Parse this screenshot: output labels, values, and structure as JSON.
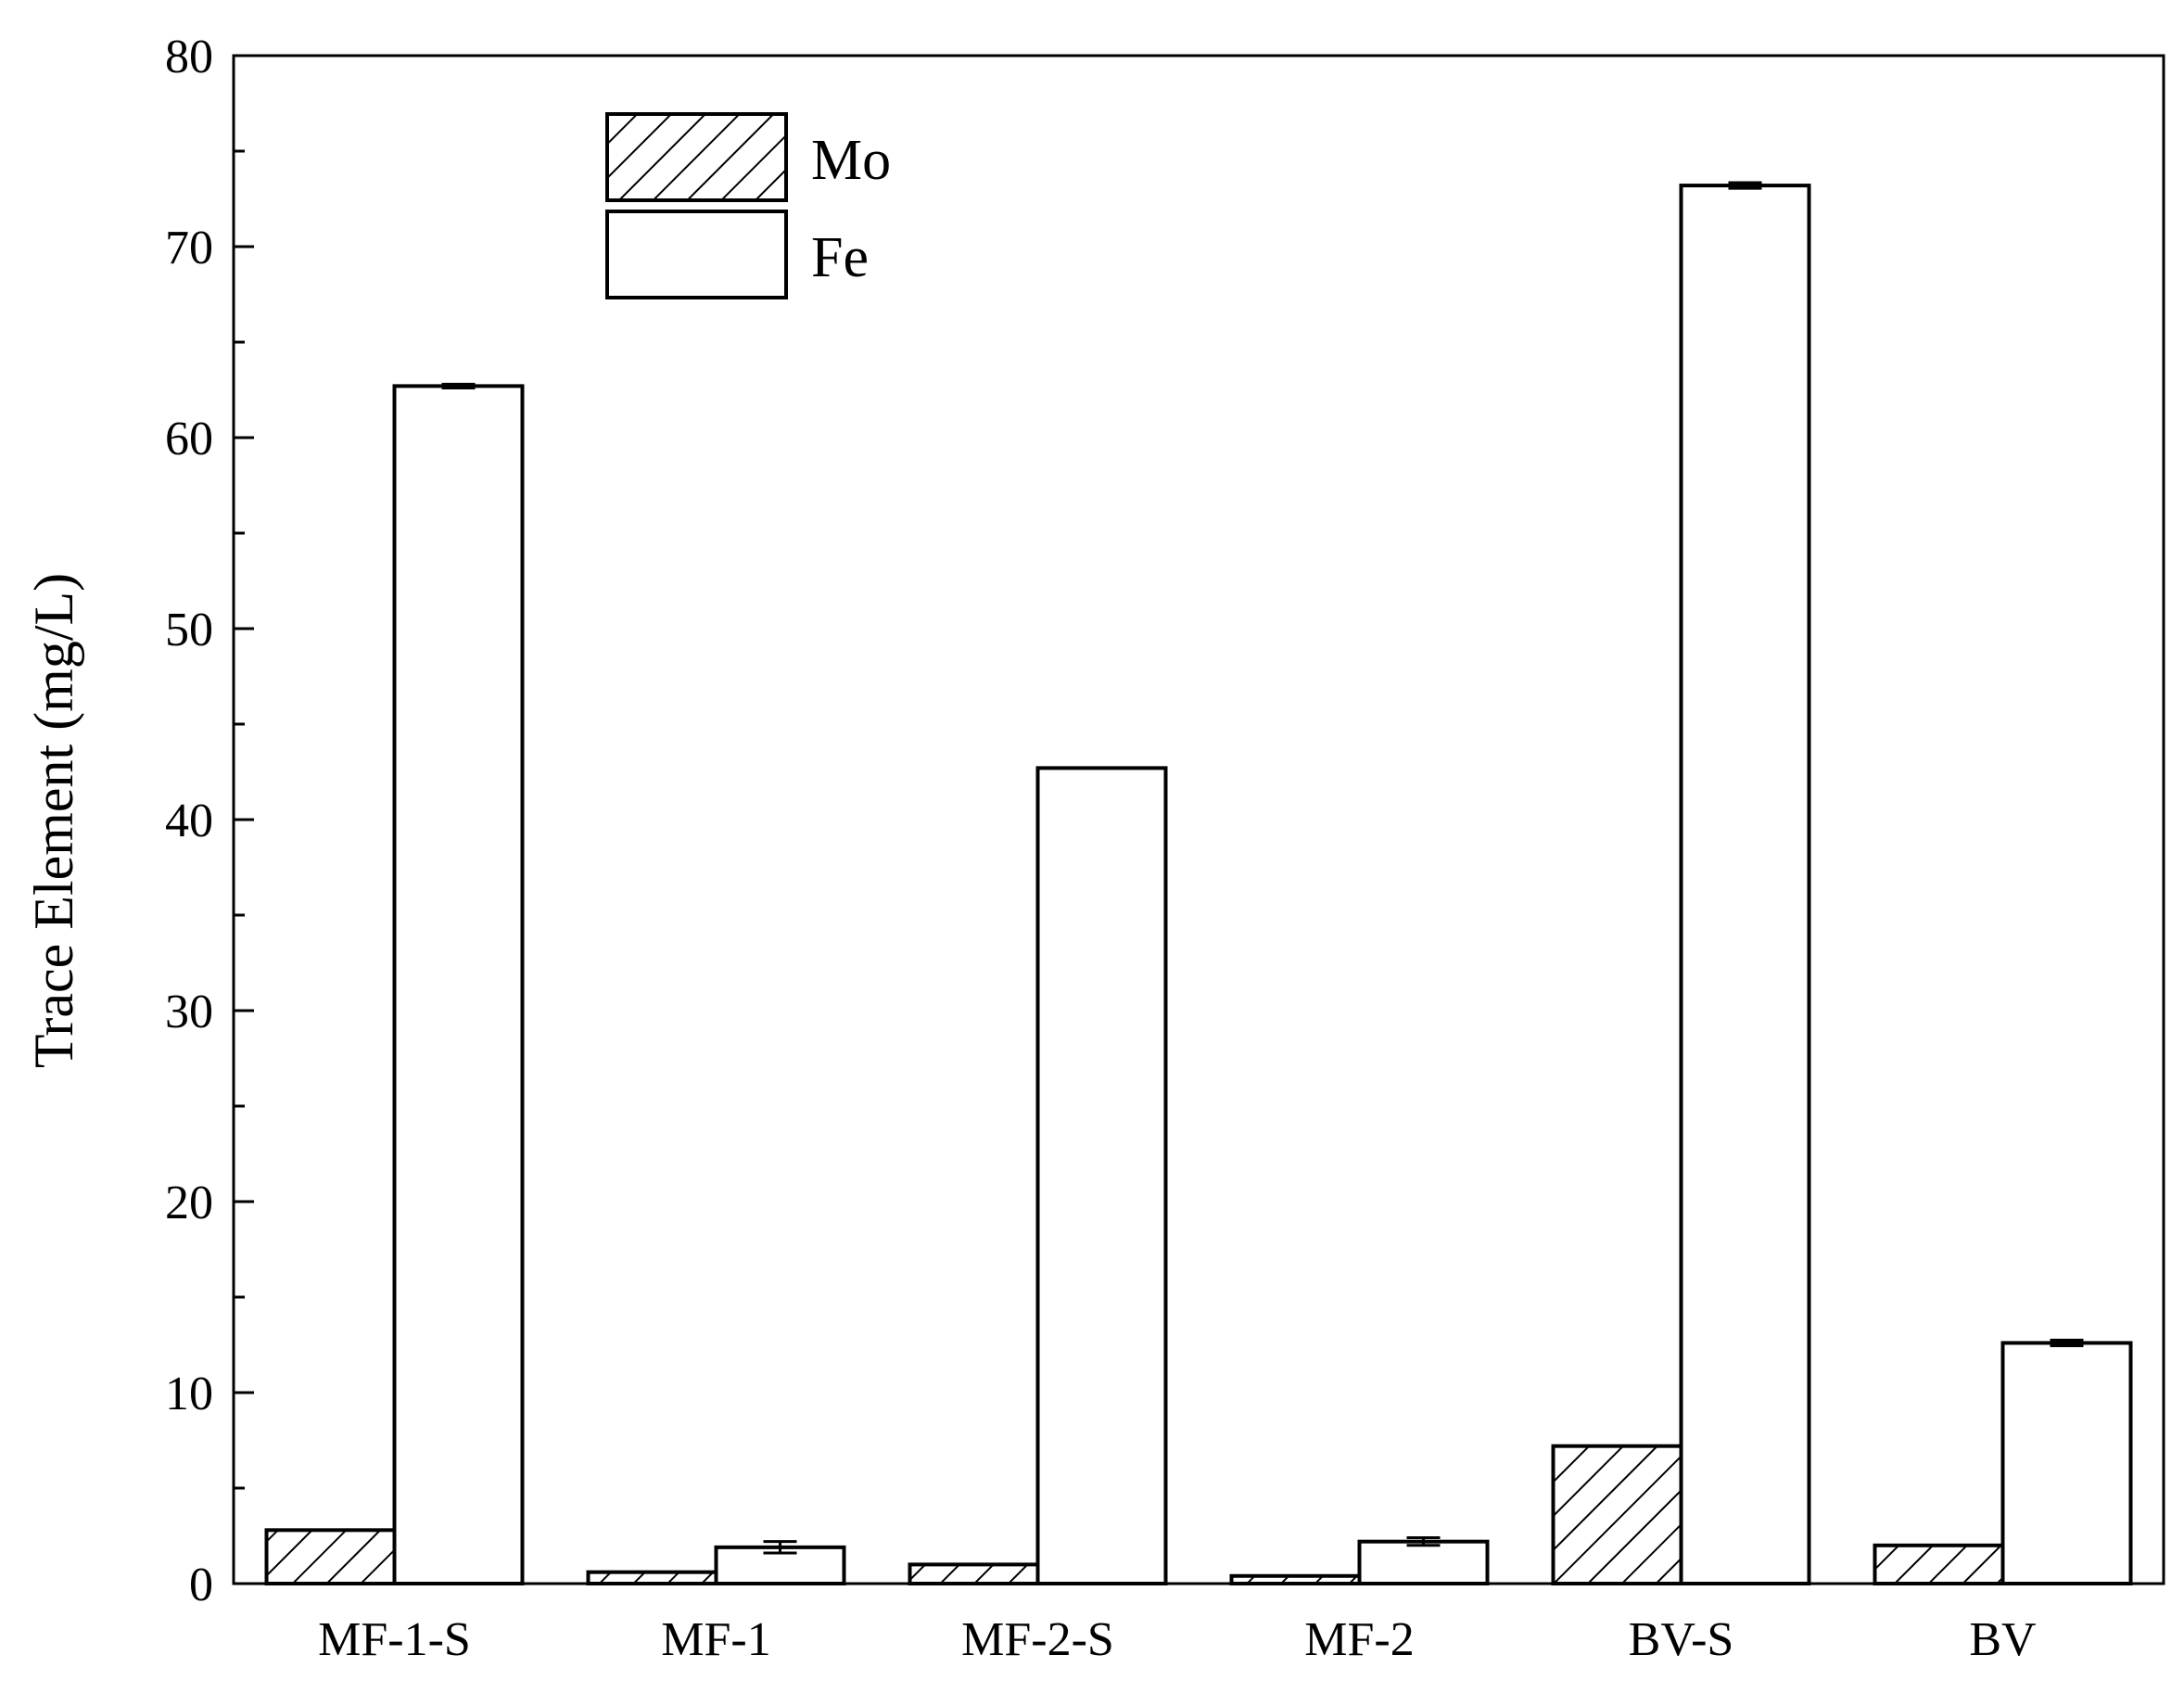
{
  "chart_data": {
    "type": "bar",
    "title": "",
    "xlabel": "",
    "ylabel": "Trace Element (mg/L)",
    "ylim": [
      0,
      80
    ],
    "yticks": [
      0,
      10,
      20,
      30,
      40,
      50,
      60,
      70,
      80
    ],
    "grid": false,
    "legend_position": "top-left",
    "categories": [
      "MF-1-S",
      "MF-1",
      "MF-2-S",
      "MF-2",
      "BV-S",
      "BV"
    ],
    "series": [
      {
        "name": "Mo",
        "pattern": "diagonal-hatch",
        "color": "#000000",
        "values": [
          2.8,
          0.6,
          1.0,
          0.4,
          7.2,
          2.0
        ],
        "errors": [
          0,
          0,
          0,
          0,
          0,
          0
        ]
      },
      {
        "name": "Fe",
        "pattern": "none",
        "color": "#000000",
        "values": [
          62.7,
          1.9,
          42.7,
          2.2,
          73.2,
          12.6
        ],
        "errors": [
          0.1,
          0.3,
          0,
          0.2,
          0.15,
          0.15
        ]
      }
    ]
  }
}
